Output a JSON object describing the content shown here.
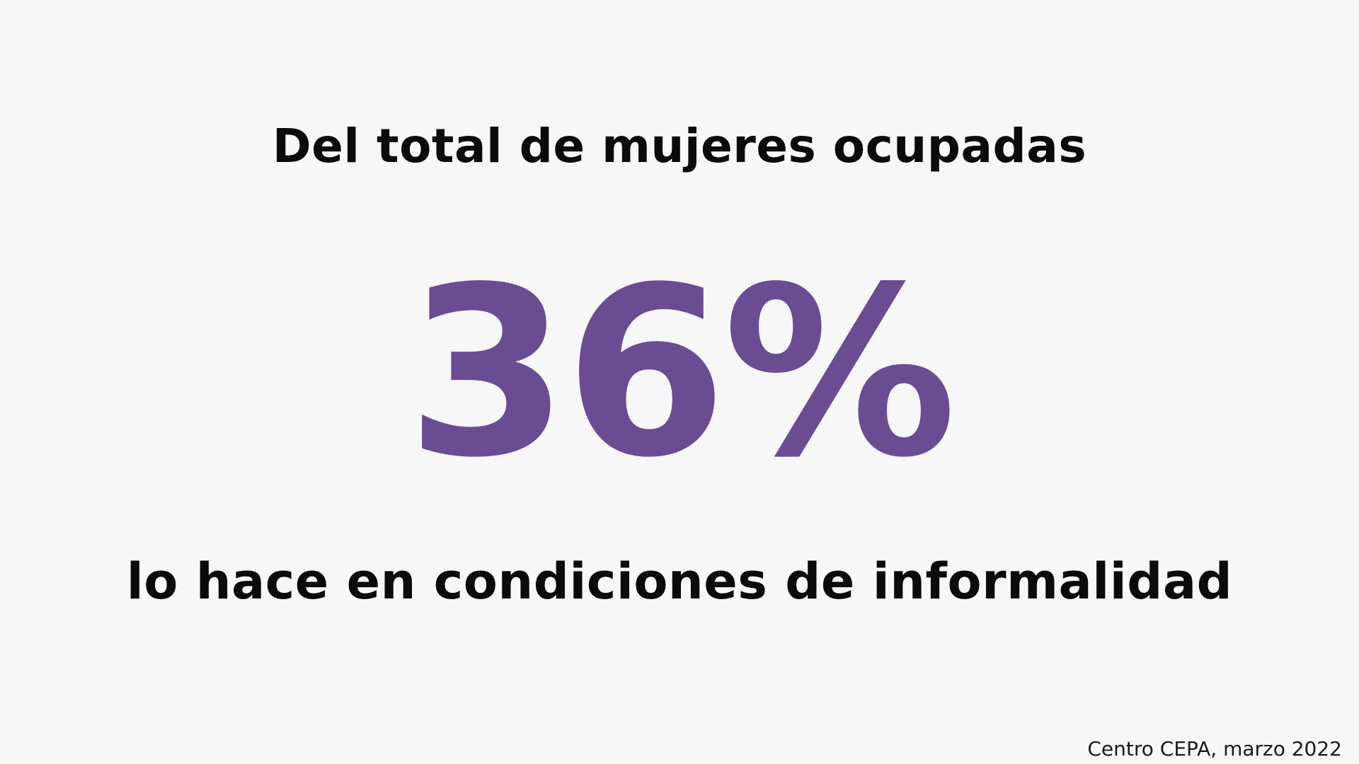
{
  "statement": {
    "intro": "Del total de mujeres ocupadas",
    "figure": "36%",
    "outro": "lo hace en condiciones de informalidad"
  },
  "source": "Centro CEPA, marzo 2022",
  "colors": {
    "background": "#f7f7f7",
    "text": "#0b0b0b",
    "accent": "#6a4c93"
  }
}
